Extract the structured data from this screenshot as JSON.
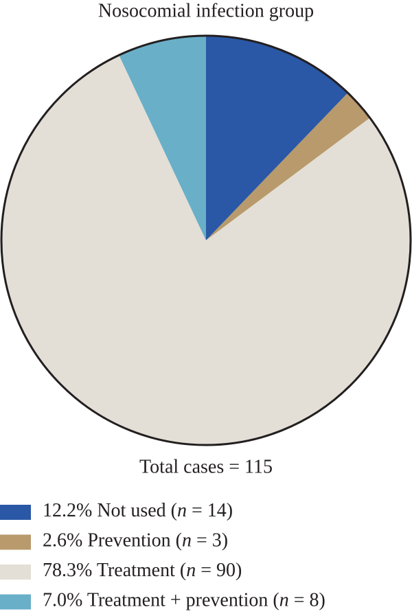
{
  "chart_data": {
    "type": "pie",
    "title": "Nosocomial infection group",
    "total_label": "Total cases = 115",
    "categories": [
      "Not used (n = 14)",
      "Prevention (n = 3)",
      "Treatment (n = 90)",
      "Treatment + prevention (n = 8)"
    ],
    "values": [
      12.2,
      2.6,
      78.3,
      7.0
    ],
    "value_labels": [
      "12.2%",
      "2.6%",
      "78.3%",
      "7.0%"
    ],
    "colors": [
      "#2a58a6",
      "#b89a6c",
      "#e3dfd6",
      "#6aafc8"
    ]
  }
}
